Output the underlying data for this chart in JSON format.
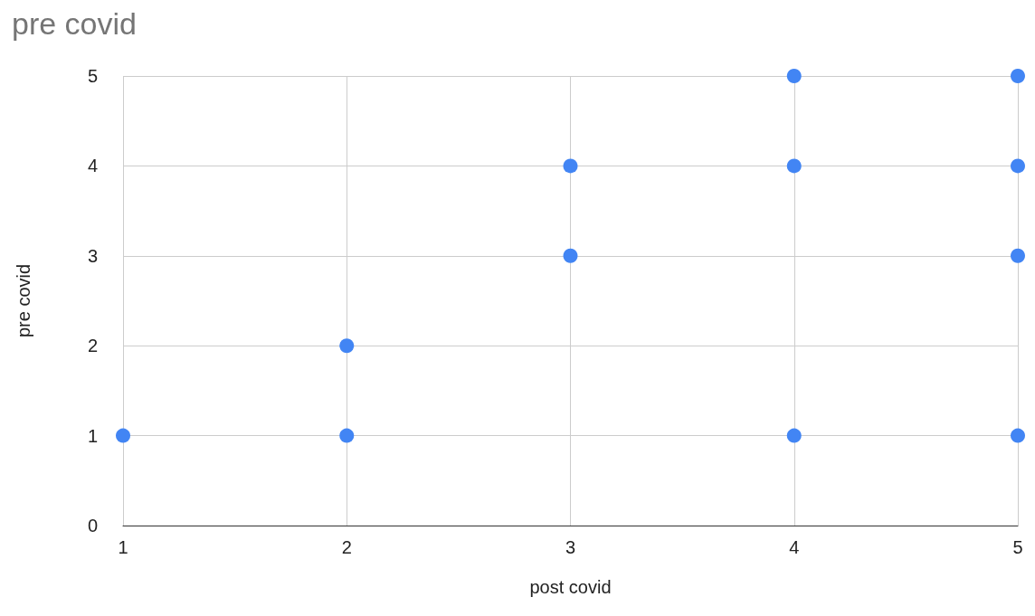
{
  "chart_data": {
    "type": "scatter",
    "title": "pre covid",
    "xlabel": "post covid",
    "ylabel": "pre covid",
    "x": [
      1,
      2,
      2,
      3,
      3,
      4,
      4,
      4,
      5,
      5,
      5,
      5
    ],
    "series": [
      {
        "color": "#4285f4",
        "values": [
          1,
          1,
          2,
          3,
          4,
          1,
          4,
          5,
          1,
          3,
          4,
          5
        ]
      }
    ],
    "xlim": [
      1,
      5
    ],
    "xticks": [
      1,
      2,
      3,
      4,
      5
    ],
    "ylim": [
      0,
      5
    ],
    "yticks": [
      0,
      1,
      2,
      3,
      4,
      5
    ],
    "grid": true,
    "marker": "circle"
  }
}
